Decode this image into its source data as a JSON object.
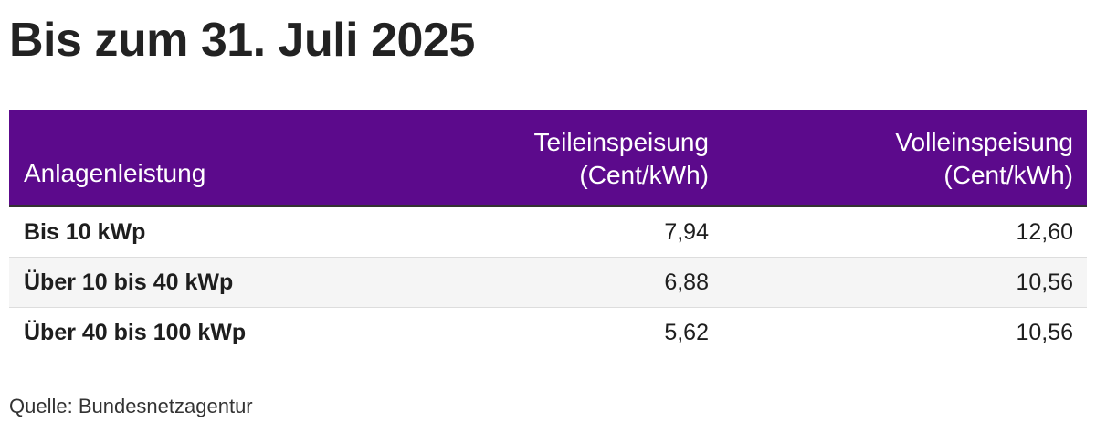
{
  "title": "Bis zum 31. Juli 2025",
  "source": "Quelle: Bundesnetzagentur",
  "colors": {
    "header_background": "#5c0a8c",
    "header_text": "#ffffff",
    "row_alt_background": "#f5f5f5"
  },
  "chart_data": {
    "type": "table",
    "title": "Bis zum 31. Juli 2025",
    "columns": [
      {
        "label": "Anlagenleistung"
      },
      {
        "label_line1": "Teileinspeisung",
        "label_line2": "(Cent/kWh)"
      },
      {
        "label_line1": "Volleinspeisung",
        "label_line2": "(Cent/kWh)"
      }
    ],
    "rows": [
      {
        "label": "Bis 10 kWp",
        "teileinspeisung": "7,94",
        "volleinspeisung": "12,60"
      },
      {
        "label": "Über 10 bis 40 kWp",
        "teileinspeisung": "6,88",
        "volleinspeisung": "10,56"
      },
      {
        "label": "Über 40 bis 100 kWp",
        "teileinspeisung": "5,62",
        "volleinspeisung": "10,56"
      }
    ]
  }
}
